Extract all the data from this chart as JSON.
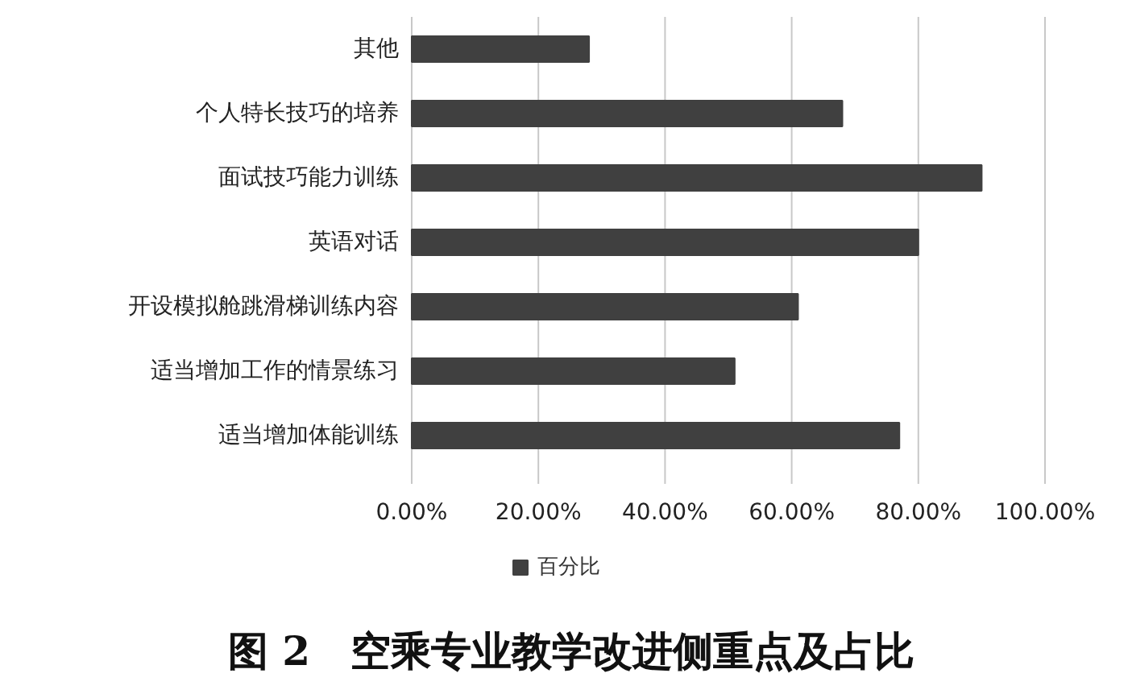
{
  "chart_data": {
    "type": "bar",
    "orientation": "horizontal",
    "title": "图 2　空乘专业教学改进侧重点及占比",
    "categories": [
      "其他",
      "个人特长技巧的培养",
      "面试技巧能力训练",
      "英语对话",
      "开设模拟舱跳滑梯训练内容",
      "适当增加工作的情景练习",
      "适当增加体能训练"
    ],
    "series": [
      {
        "name": "百分比",
        "color": "#404040",
        "values": [
          28,
          68,
          90,
          80,
          61,
          51,
          77
        ]
      }
    ],
    "xlim": [
      0,
      100
    ],
    "xticks": [
      {
        "value": 0,
        "label": "0.00%"
      },
      {
        "value": 20,
        "label": "20.00%"
      },
      {
        "value": 40,
        "label": "40.00%"
      },
      {
        "value": 60,
        "label": "60.00%"
      },
      {
        "value": 80,
        "label": "80.00%"
      },
      {
        "value": 100,
        "label": "100.00%"
      }
    ],
    "grid": "x",
    "legend": "bottom"
  }
}
